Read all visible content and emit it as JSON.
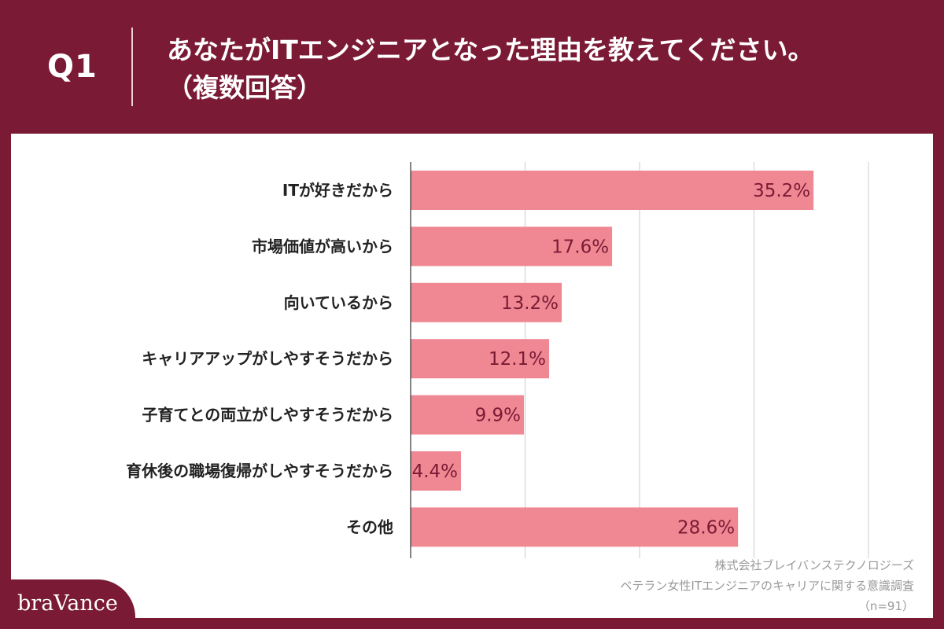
{
  "header": {
    "qnum": "Q1",
    "question_line1": "あなたがITエンジニアとなった理由を教えてください。",
    "question_line2": "（複数回答）"
  },
  "chart_data": {
    "type": "bar",
    "orientation": "horizontal",
    "categories": [
      "ITが好きだから",
      "市場価値が高いから",
      "向いているから",
      "キャリアアップがしやすそうだから",
      "子育てとの両立がしやすそうだから",
      "育休後の職場復帰がしやすそうだから",
      "その他"
    ],
    "values": [
      35.2,
      17.6,
      13.2,
      12.1,
      9.9,
      4.4,
      28.6
    ],
    "value_labels": [
      "35.2%",
      "17.6%",
      "13.2%",
      "12.1%",
      "9.9%",
      "4.4%",
      "28.6%"
    ],
    "xlim": [
      0,
      40
    ],
    "grid": true,
    "bar_color": "#ef8893",
    "label_color": "#7a1a35"
  },
  "source": {
    "line1": "株式会社ブレイバンステクノロジーズ",
    "line2": "ベテラン女性ITエンジニアのキャリアに関する意識調査",
    "line3": "（n=91）"
  },
  "brand": {
    "logo": "braVance"
  },
  "colors": {
    "brand": "#7a1a35",
    "bar": "#ef8893",
    "panel": "#ffffff"
  }
}
